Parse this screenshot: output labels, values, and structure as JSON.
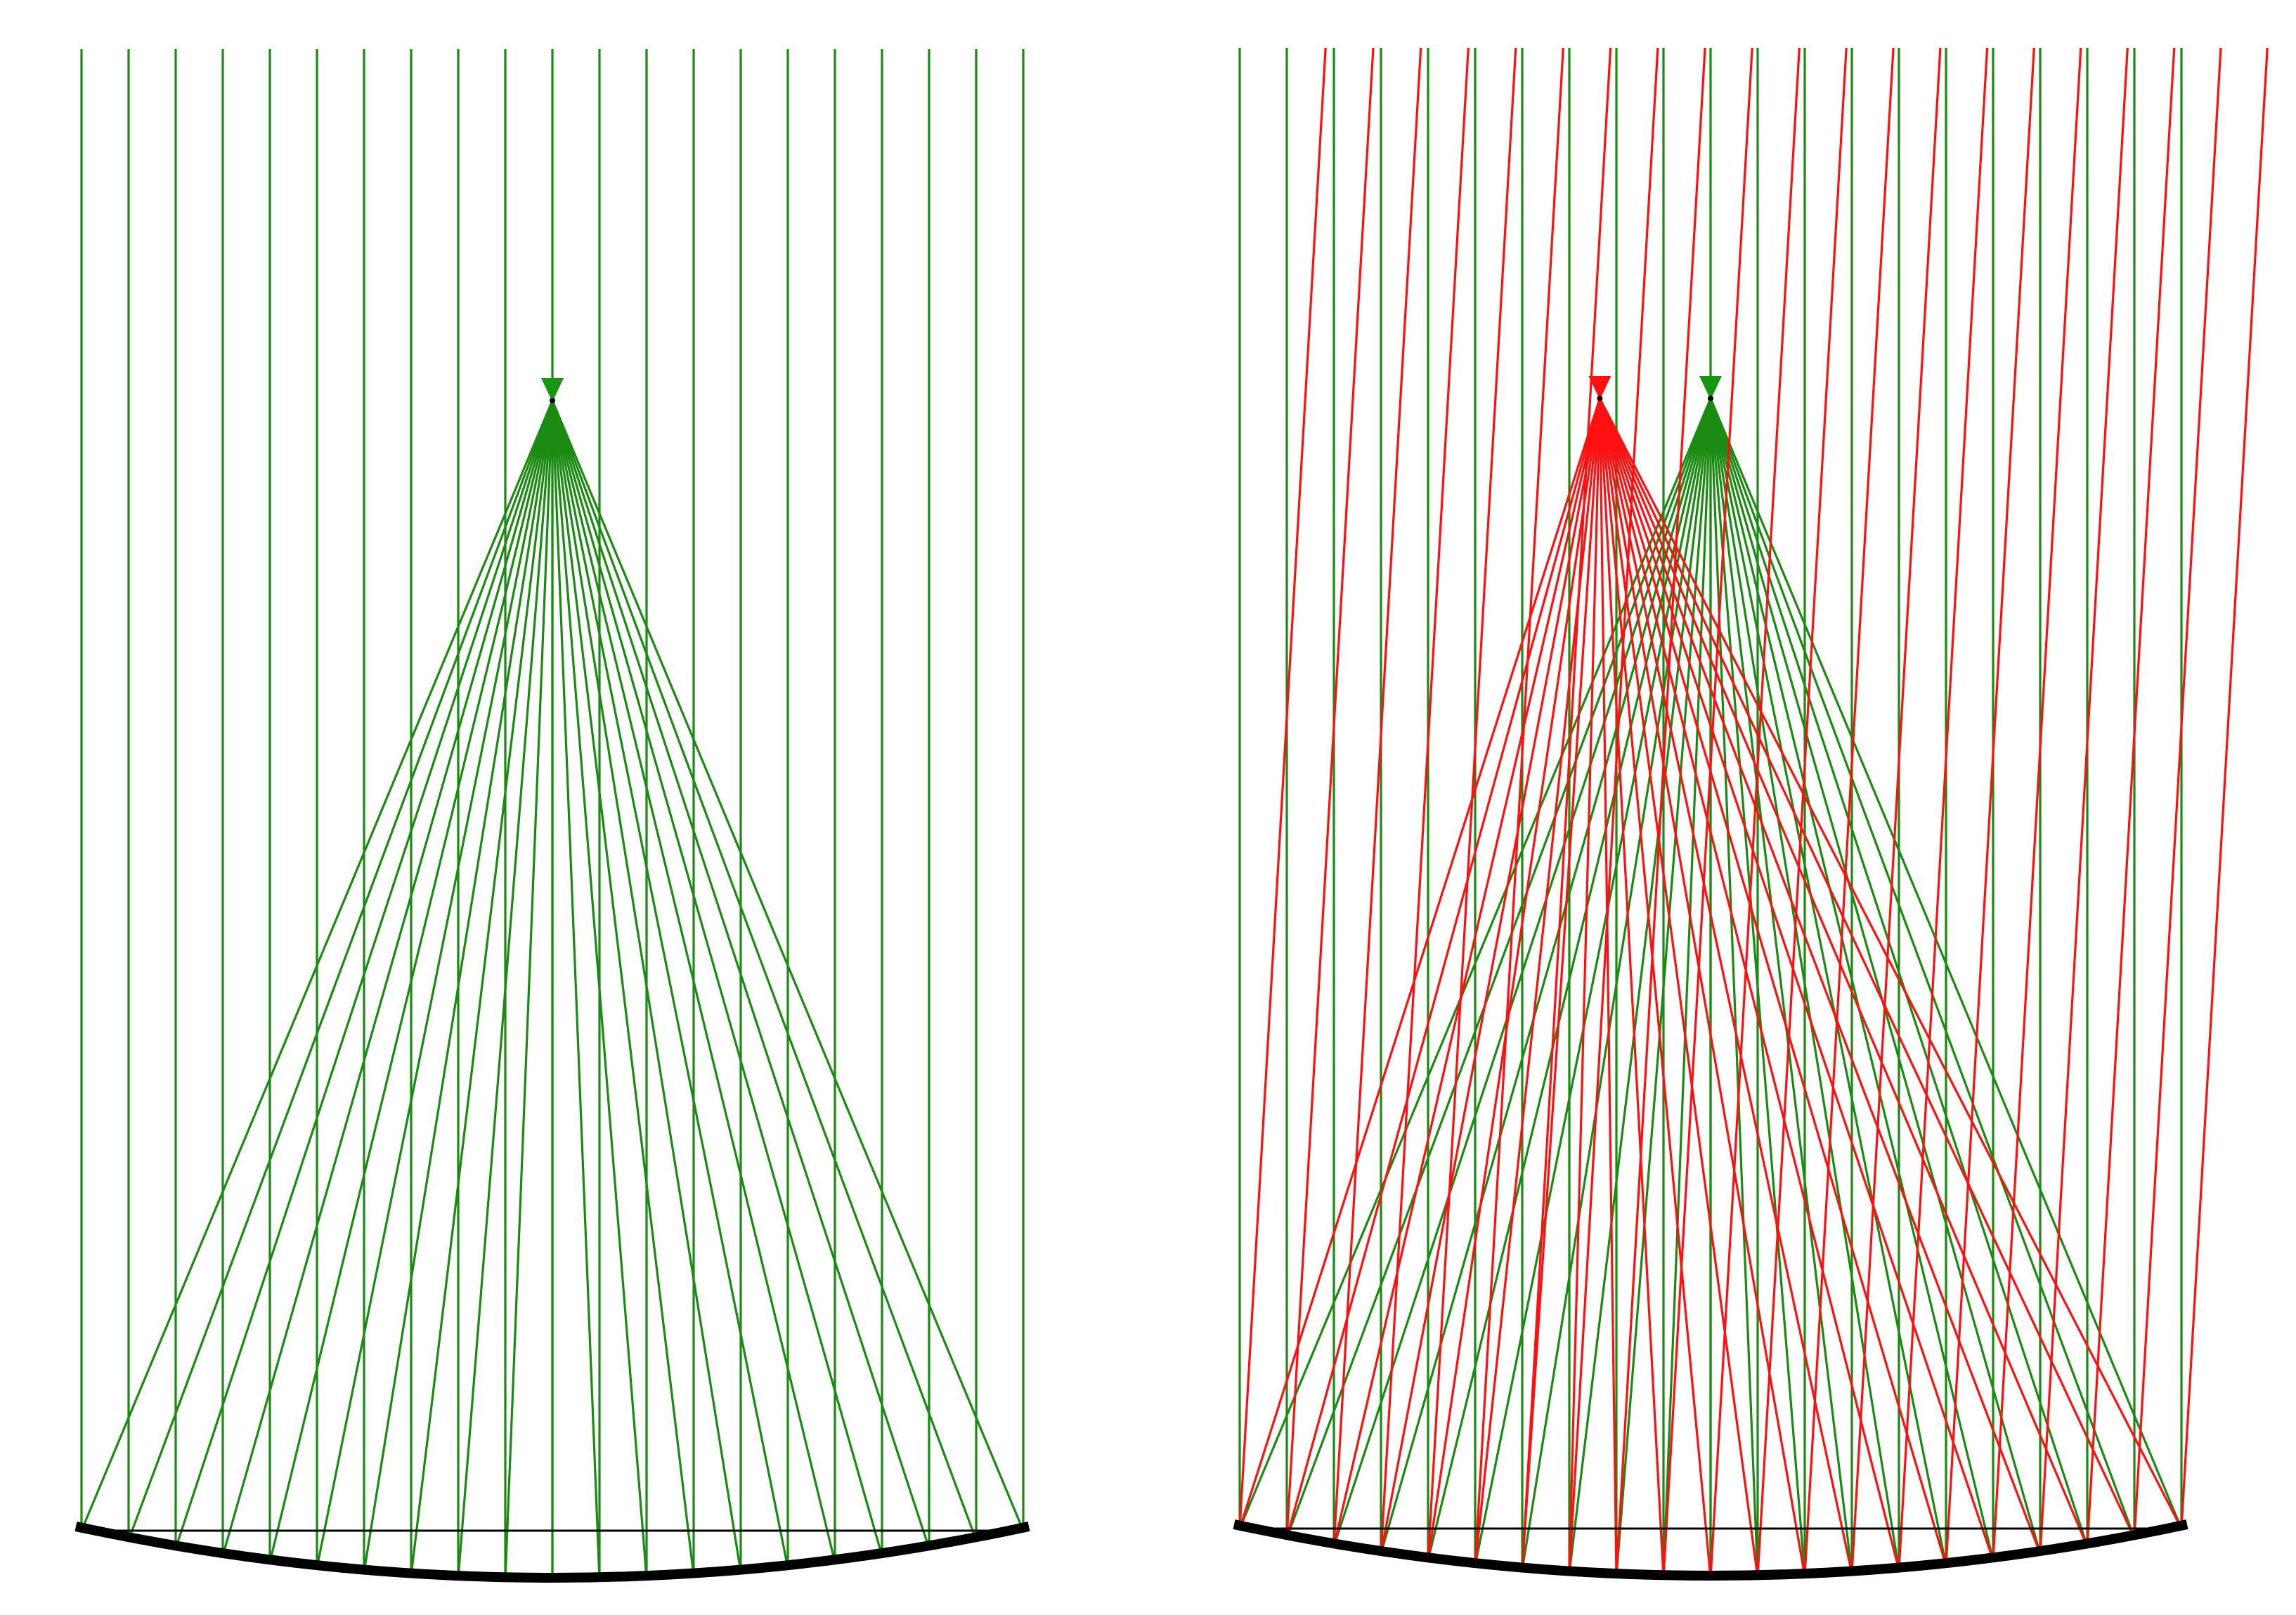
{
  "colors": {
    "background": "#ffffff",
    "mirror": "#000000",
    "chord": "#000000",
    "on_axis_rays": "#1a8a12",
    "focus_marker_green": "#169611",
    "off_axis_rays": "#ff1010",
    "focus_marker_red": "#ff1010"
  },
  "diagrams": [
    {
      "name": "parabolic-mirror-on-axis",
      "ray_count": 21,
      "ray_sets": [
        {
          "name": "on-axis-rays",
          "color_key": "on_axis_rays",
          "marker_color_key": "focus_marker_green",
          "tilt": 0.0,
          "focus_shift": 0.0
        }
      ]
    },
    {
      "name": "parabolic-mirror-off-axis",
      "ray_count": 21,
      "ray_sets": [
        {
          "name": "on-axis-rays",
          "color_key": "on_axis_rays",
          "marker_color_key": "focus_marker_green",
          "tilt": 0.0,
          "focus_shift": 0.0
        },
        {
          "name": "off-axis-rays",
          "color_key": "off_axis_rays",
          "marker_color_key": "focus_marker_red",
          "tilt": 0.058,
          "focus_shift": -0.098
        }
      ]
    }
  ]
}
